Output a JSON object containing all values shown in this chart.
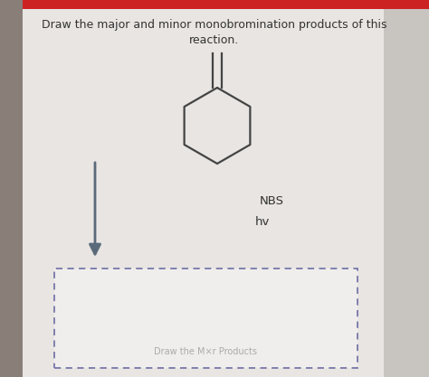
{
  "title_line1": "Draw the major and minor monobromination products of this",
  "title_line2": "reaction.",
  "bg_color": "#e8e5e2",
  "main_bg": "#f0eeec",
  "left_bar_color": "#8a7f78",
  "right_bar_color": "#c8c4c0",
  "red_bar_color": "#cc2222",
  "text_color": "#333333",
  "molecule_color": "#444444",
  "arrow_color": "#5a6a7a",
  "reagent1": "NBS",
  "reagent2": "hv",
  "answer_placeholder": "Draw the M×r Products",
  "dashed_color": "#7777aa"
}
